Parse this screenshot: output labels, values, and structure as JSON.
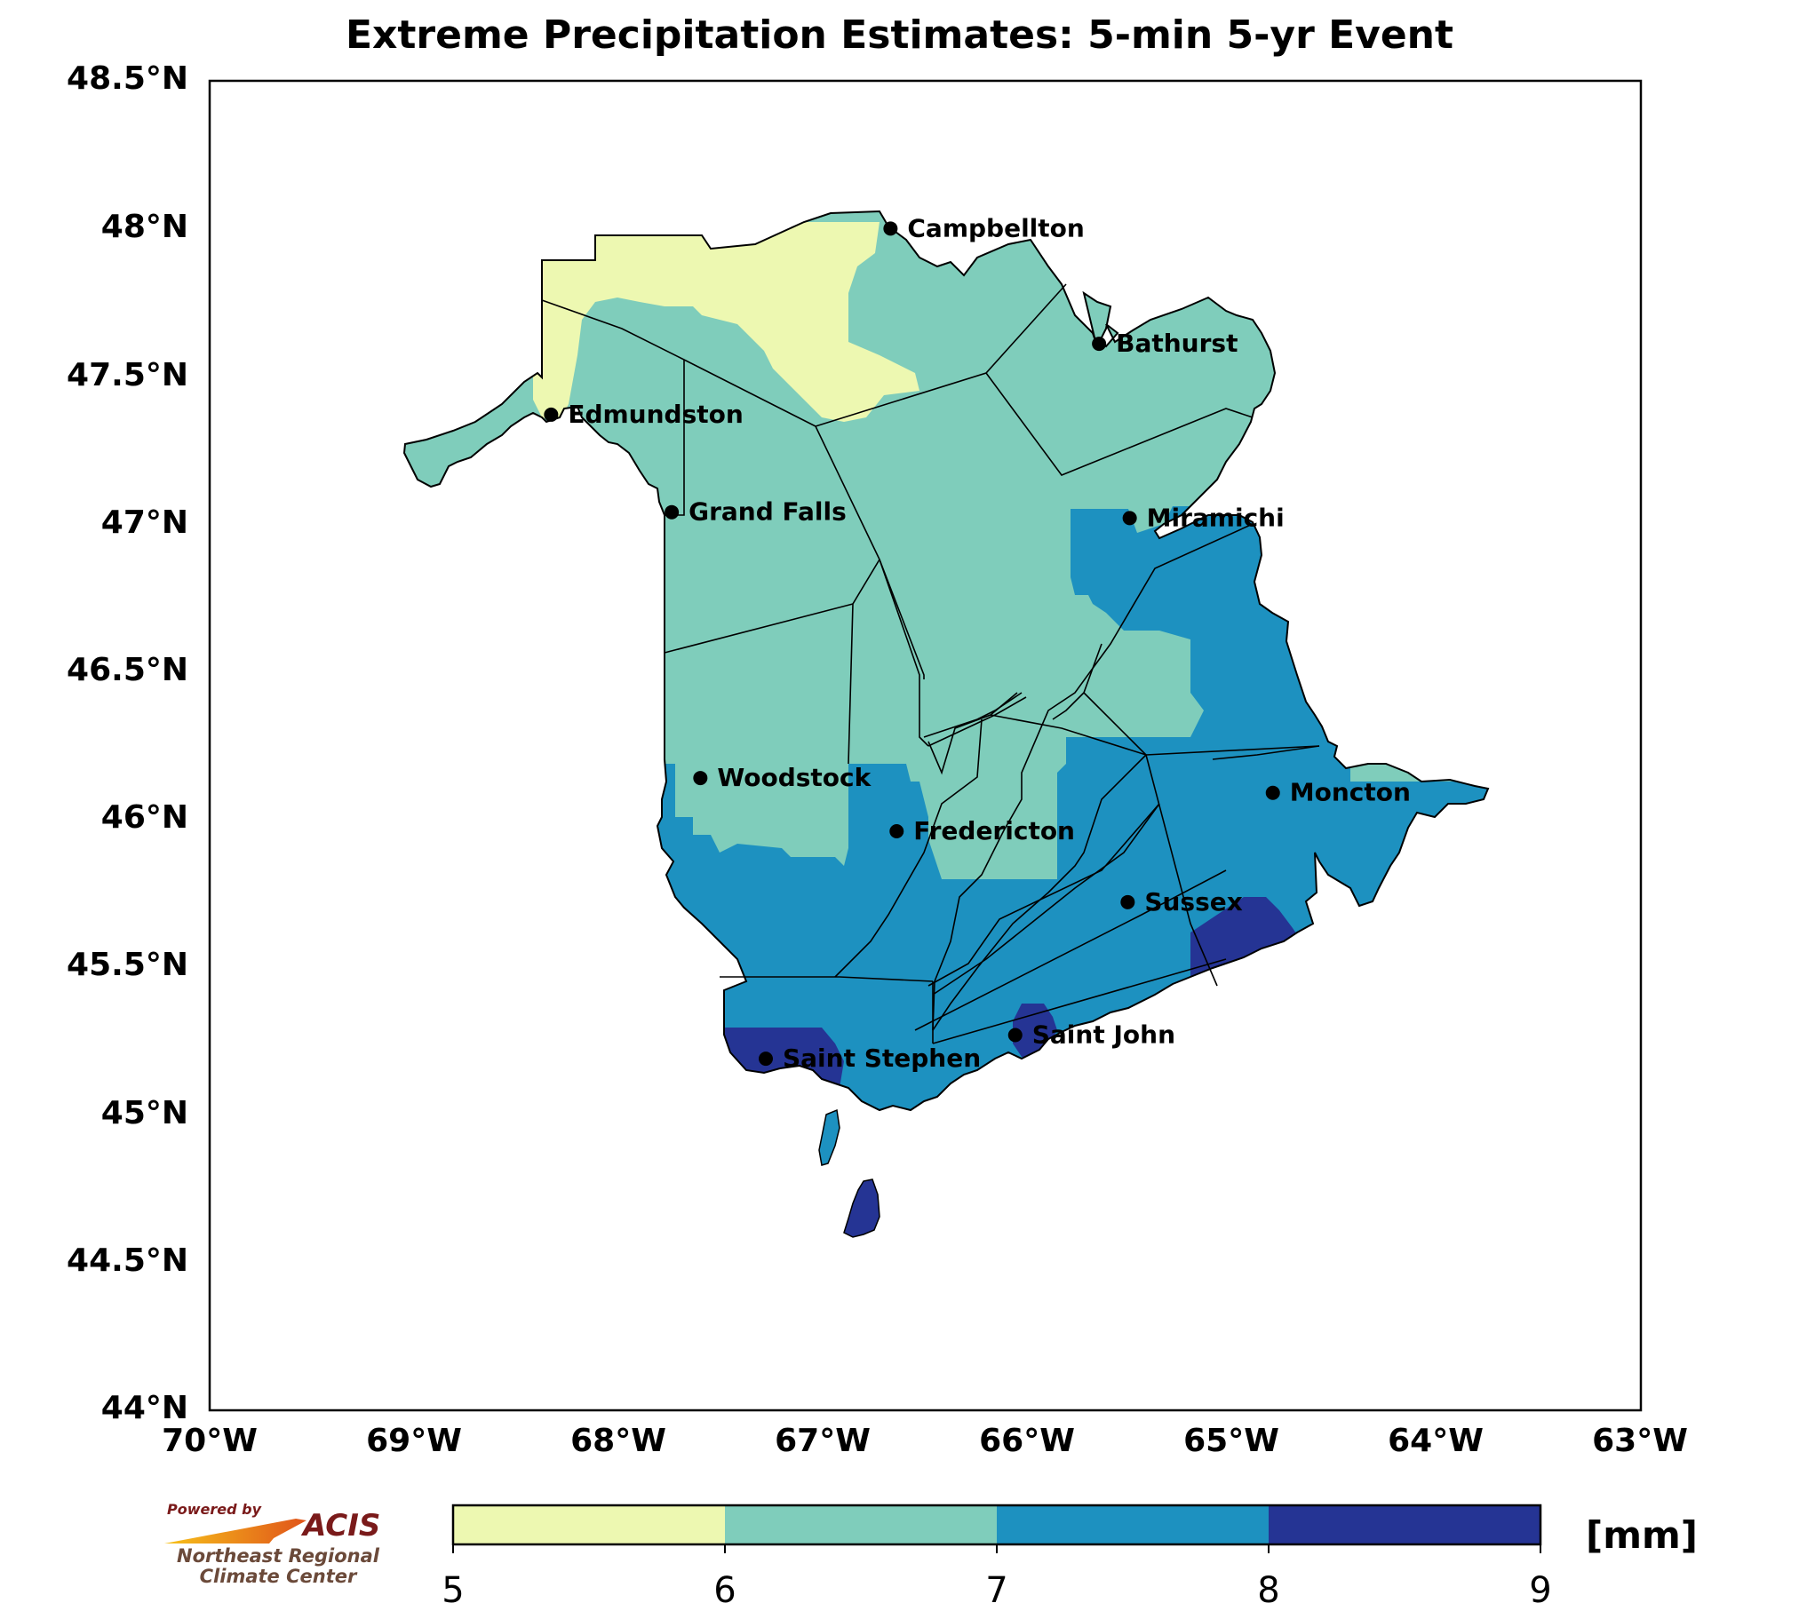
{
  "title": "Extreme Precipitation Estimates: 5-min 5-yr Event",
  "axes": {
    "lat_labels": [
      "48.5°N",
      "48°N",
      "47.5°N",
      "47°N",
      "46.5°N",
      "46°N",
      "45.5°N",
      "45°N",
      "44.5°N",
      "44°N"
    ],
    "lon_labels": [
      "70°W",
      "69°W",
      "68°W",
      "67°W",
      "66°W",
      "65°W",
      "64°W",
      "63°W"
    ],
    "lat_range": [
      44.0,
      48.5
    ],
    "lon_range": [
      -70.0,
      -63.0
    ]
  },
  "cities": [
    {
      "name": "Campbellton",
      "lon": -66.67,
      "lat": 48.0
    },
    {
      "name": "Bathurst",
      "lon": -65.65,
      "lat": 47.61
    },
    {
      "name": "Edmundston",
      "lon": -68.33,
      "lat": 47.37
    },
    {
      "name": "Grand Falls",
      "lon": -67.74,
      "lat": 47.04
    },
    {
      "name": "Miramichi",
      "lon": -65.5,
      "lat": 47.02
    },
    {
      "name": "Woodstock",
      "lon": -67.6,
      "lat": 46.14
    },
    {
      "name": "Moncton",
      "lon": -64.8,
      "lat": 46.09
    },
    {
      "name": "Fredericton",
      "lon": -66.64,
      "lat": 45.96
    },
    {
      "name": "Sussex",
      "lon": -65.51,
      "lat": 45.72
    },
    {
      "name": "Saint John",
      "lon": -66.06,
      "lat": 45.27
    },
    {
      "name": "Saint Stephen",
      "lon": -67.28,
      "lat": 45.19
    }
  ],
  "colorbar": {
    "ticks": [
      "5",
      "6",
      "7",
      "8",
      "9"
    ],
    "colors": [
      "#edf8b1",
      "#7fcdbb",
      "#1d91c0",
      "#253494"
    ],
    "unit": "[mm]"
  },
  "logo": {
    "powered_by": "Powered by",
    "acis": "ACIS",
    "line1": "Northeast Regional",
    "line2": "Climate Center"
  }
}
